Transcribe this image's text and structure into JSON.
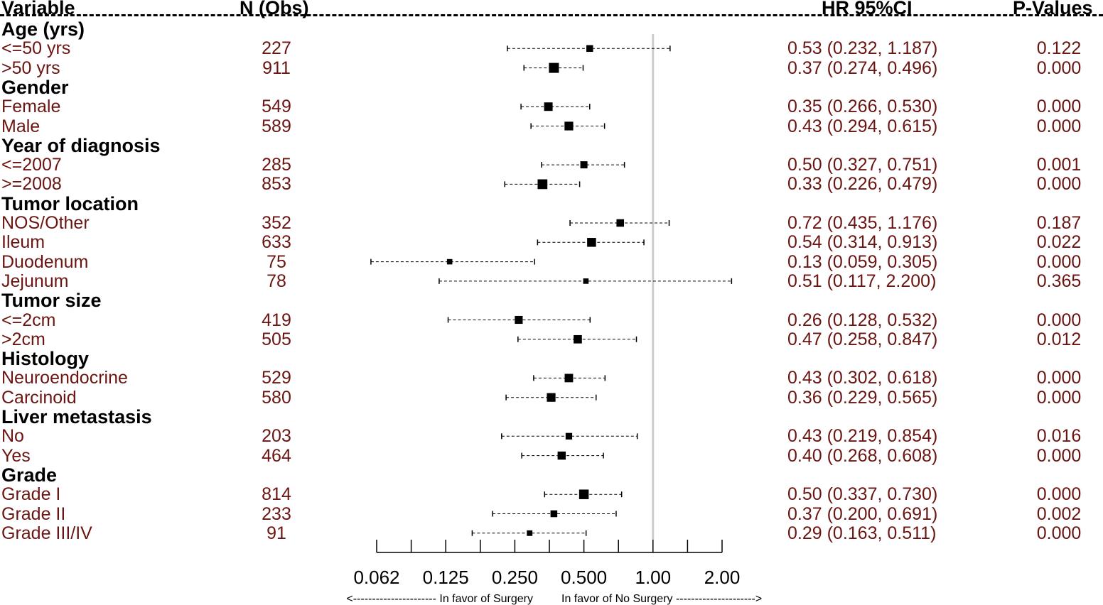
{
  "headers": {
    "variable": "Variable",
    "n_obs": "N (Obs)",
    "hr": "HR 95%CI",
    "p": "P-Values"
  },
  "chart_data": {
    "type": "forest",
    "xscale": "log2",
    "xlim": [
      0.062,
      2.0
    ],
    "reference_line": 1.0,
    "ticks": [
      "0.062",
      "0.125",
      "0.250",
      "0.500",
      "1.00",
      "2.00"
    ],
    "tick_values": [
      0.0625,
      0.125,
      0.25,
      0.5,
      1.0,
      2.0
    ],
    "favor_left": "<---------------------- In favor of Surgery",
    "favor_right": "In favor of No Surgery --------------------->",
    "rows": [
      {
        "type": "group",
        "label": "Age (yrs)"
      },
      {
        "type": "item",
        "label": "<=50 yrs",
        "n": "227",
        "hr_text": "0.53 (0.232, 1.187)",
        "p": "0.122",
        "hr": 0.53,
        "lo": 0.232,
        "hi": 1.187
      },
      {
        "type": "item",
        "label": ">50 yrs",
        "n": "911",
        "hr_text": "0.37 (0.274, 0.496)",
        "p": "0.000",
        "hr": 0.37,
        "lo": 0.274,
        "hi": 0.496
      },
      {
        "type": "group",
        "label": "Gender"
      },
      {
        "type": "item",
        "label": "Female",
        "n": "549",
        "hr_text": "0.35 (0.266, 0.530)",
        "p": "0.000",
        "hr": 0.35,
        "lo": 0.266,
        "hi": 0.53
      },
      {
        "type": "item",
        "label": "Male",
        "n": "589",
        "hr_text": "0.43 (0.294, 0.615)",
        "p": "0.000",
        "hr": 0.43,
        "lo": 0.294,
        "hi": 0.615
      },
      {
        "type": "group",
        "label": "Year of diagnosis"
      },
      {
        "type": "item",
        "label": "<=2007",
        "n": "285",
        "hr_text": "0.50 (0.327, 0.751)",
        "p": "0.001",
        "hr": 0.5,
        "lo": 0.327,
        "hi": 0.751
      },
      {
        "type": "item",
        "label": ">=2008",
        "n": "853",
        "hr_text": "0.33 (0.226, 0.479)",
        "p": "0.000",
        "hr": 0.33,
        "lo": 0.226,
        "hi": 0.479
      },
      {
        "type": "group",
        "label": "Tumor location"
      },
      {
        "type": "item",
        "label": "NOS/Other",
        "n": "352",
        "hr_text": "0.72 (0.435, 1.176)",
        "p": "0.187",
        "hr": 0.72,
        "lo": 0.435,
        "hi": 1.176
      },
      {
        "type": "item",
        "label": "Ileum",
        "n": "633",
        "hr_text": "0.54 (0.314, 0.913)",
        "p": "0.022",
        "hr": 0.54,
        "lo": 0.314,
        "hi": 0.913
      },
      {
        "type": "item",
        "label": "Duodenum",
        "n": "75",
        "hr_text": "0.13 (0.059, 0.305)",
        "p": "0.000",
        "hr": 0.13,
        "lo": 0.059,
        "hi": 0.305
      },
      {
        "type": "item",
        "label": "Jejunum",
        "n": "78",
        "hr_text": "0.51 (0.117, 2.200)",
        "p": "0.365",
        "hr": 0.51,
        "lo": 0.117,
        "hi": 2.2
      },
      {
        "type": "group",
        "label": "Tumor size"
      },
      {
        "type": "item",
        "label": "<=2cm",
        "n": "419",
        "hr_text": "0.26 (0.128, 0.532)",
        "p": "0.000",
        "hr": 0.26,
        "lo": 0.128,
        "hi": 0.532
      },
      {
        "type": "item",
        "label": ">2cm",
        "n": "505",
        "hr_text": "0.47 (0.258, 0.847)",
        "p": "0.012",
        "hr": 0.47,
        "lo": 0.258,
        "hi": 0.847
      },
      {
        "type": "group",
        "label": "Histology"
      },
      {
        "type": "item",
        "label": "Neuroendocrine",
        "n": "529",
        "hr_text": "0.43 (0.302, 0.618)",
        "p": "0.000",
        "hr": 0.43,
        "lo": 0.302,
        "hi": 0.618
      },
      {
        "type": "item",
        "label": "Carcinoid",
        "n": "580",
        "hr_text": "0.36 (0.229, 0.565)",
        "p": "0.000",
        "hr": 0.36,
        "lo": 0.229,
        "hi": 0.565
      },
      {
        "type": "group",
        "label": "Liver metastasis"
      },
      {
        "type": "item",
        "label": "No",
        "n": "203",
        "hr_text": "0.43 (0.219, 0.854)",
        "p": "0.016",
        "hr": 0.43,
        "lo": 0.219,
        "hi": 0.854
      },
      {
        "type": "item",
        "label": "Yes",
        "n": "464",
        "hr_text": "0.40 (0.268, 0.608)",
        "p": "0.000",
        "hr": 0.4,
        "lo": 0.268,
        "hi": 0.608
      },
      {
        "type": "group",
        "label": "Grade"
      },
      {
        "type": "item",
        "label": "Grade I",
        "n": "814",
        "hr_text": "0.50 (0.337, 0.730)",
        "p": "0.000",
        "hr": 0.5,
        "lo": 0.337,
        "hi": 0.73
      },
      {
        "type": "item",
        "label": "Grade II",
        "n": "233",
        "hr_text": "0.37 (0.200, 0.691)",
        "p": "0.002",
        "hr": 0.37,
        "lo": 0.2,
        "hi": 0.691
      },
      {
        "type": "item",
        "label": "Grade III/IV",
        "n": "91",
        "hr_text": "0.29 (0.163, 0.511)",
        "p": "0.000",
        "hr": 0.29,
        "lo": 0.163,
        "hi": 0.511
      }
    ]
  },
  "colors": {
    "row_text": "#6b1512",
    "group_text": "#000000",
    "reference_line": "#cccccc",
    "marks": "#000000"
  }
}
